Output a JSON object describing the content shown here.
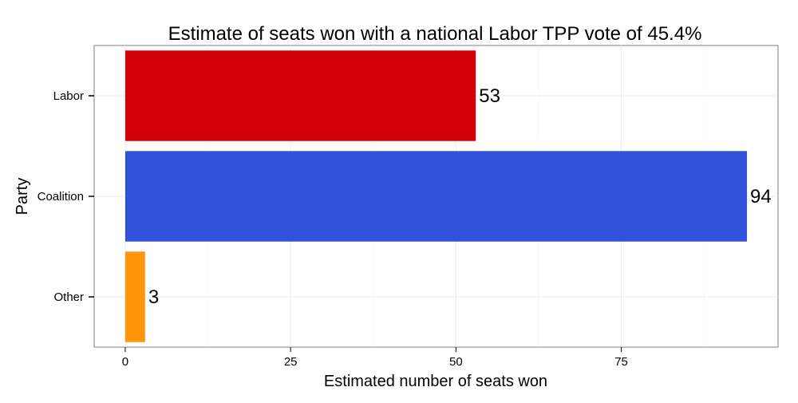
{
  "chart_data": {
    "type": "bar",
    "orientation": "horizontal",
    "title": "Estimate of seats won with a national Labor TPP vote of 45.4%",
    "xlabel": "Estimated number of seats won",
    "ylabel": "Party",
    "categories": [
      "Labor",
      "Coalition",
      "Other"
    ],
    "values": [
      53,
      94,
      3
    ],
    "data_labels": [
      "53",
      "94",
      "3"
    ],
    "colors": [
      "#d4000a",
      "#3352db",
      "#ff9508"
    ],
    "xlim": [
      -4.7,
      98.7
    ],
    "x_ticks": [
      0,
      25,
      50,
      75
    ],
    "x_tick_labels": [
      "0",
      "25",
      "50",
      "75"
    ],
    "grid": true,
    "legend": "none"
  }
}
